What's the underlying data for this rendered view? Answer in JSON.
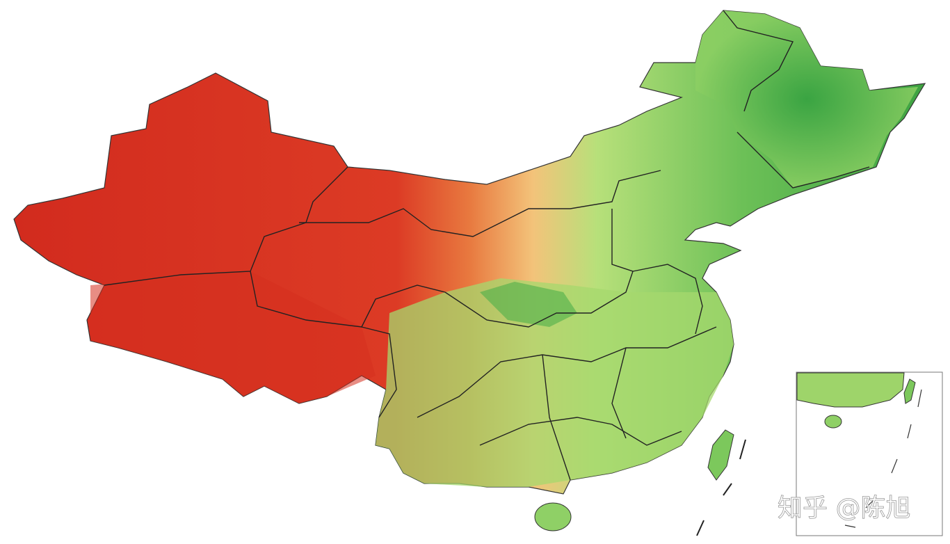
{
  "watermark": "知乎 @陈旭"
}
